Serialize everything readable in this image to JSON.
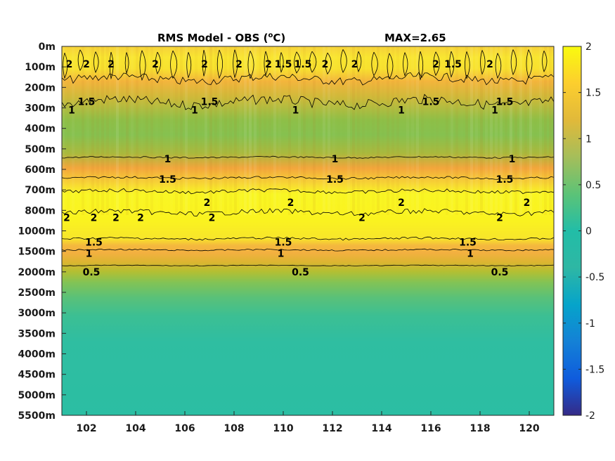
{
  "chart_data": {
    "type": "heatmap",
    "title": "RMS Model - OBS (",
    "title_unit_sup": "o",
    "title_unit_end": "C)",
    "max_label": "MAX=2.65",
    "x_ticks": [
      102,
      104,
      106,
      108,
      110,
      112,
      114,
      116,
      118,
      120
    ],
    "xlim": [
      101,
      121
    ],
    "y_ticks": [
      "0m",
      "100m",
      "200m",
      "300m",
      "400m",
      "500m",
      "600m",
      "700m",
      "800m",
      "1000m",
      "1500m",
      "2000m",
      "2500m",
      "3000m",
      "3500m",
      "4000m",
      "4500m",
      "5000m",
      "5500m"
    ],
    "y_direction": "reversed",
    "colorbar": {
      "ticks": [
        "2",
        "1.5",
        "1",
        "0.5",
        "0",
        "-0.5",
        "-1",
        "-1.5",
        "-2"
      ],
      "range": [
        -2,
        2
      ],
      "colormap": "parula"
    },
    "depth_profile_rms": [
      1.8,
      1.85,
      1.6,
      1.2,
      0.8,
      0.95,
      1.55,
      1.95,
      2.1,
      1.9,
      1.2,
      0.7,
      0.5,
      0.5,
      0.5,
      0.5,
      0.5,
      0.5,
      0.5
    ],
    "contour_levels": [
      2,
      1.5,
      1,
      0.5
    ],
    "contour_labels": [
      {
        "text": "2",
        "x": 101.3,
        "level_y": "100m"
      },
      {
        "text": "2",
        "x": 102.0,
        "level_y": "100m"
      },
      {
        "text": "2",
        "x": 103.0,
        "level_y": "100m"
      },
      {
        "text": "2",
        "x": 104.8,
        "level_y": "100m"
      },
      {
        "text": "2",
        "x": 106.8,
        "level_y": "100m"
      },
      {
        "text": "2",
        "x": 108.2,
        "level_y": "100m"
      },
      {
        "text": "2",
        "x": 109.4,
        "level_y": "100m"
      },
      {
        "text": "1.5",
        "x": 110.0,
        "level_y": "100m"
      },
      {
        "text": "1.5",
        "x": 110.8,
        "level_y": "100m"
      },
      {
        "text": "2",
        "x": 111.7,
        "level_y": "100m"
      },
      {
        "text": "2",
        "x": 112.9,
        "level_y": "100m"
      },
      {
        "text": "2",
        "x": 116.2,
        "level_y": "100m"
      },
      {
        "text": "1.5",
        "x": 116.9,
        "level_y": "100m"
      },
      {
        "text": "2",
        "x": 118.4,
        "level_y": "100m"
      },
      {
        "text": "1.5",
        "x": 102.0,
        "level_y": "200m"
      },
      {
        "text": "1.5",
        "x": 107.0,
        "level_y": "200m"
      },
      {
        "text": "1.5",
        "x": 116.0,
        "level_y": "200m"
      },
      {
        "text": "1.5",
        "x": 119.0,
        "level_y": "200m"
      },
      {
        "text": "1",
        "x": 101.4,
        "level_y": "300m"
      },
      {
        "text": "1",
        "x": 106.4,
        "level_y": "300m"
      },
      {
        "text": "1",
        "x": 110.5,
        "level_y": "300m"
      },
      {
        "text": "1",
        "x": 114.8,
        "level_y": "300m"
      },
      {
        "text": "1",
        "x": 118.6,
        "level_y": "300m"
      },
      {
        "text": "1",
        "x": 105.3,
        "level_y": "500m"
      },
      {
        "text": "1",
        "x": 112.1,
        "level_y": "500m"
      },
      {
        "text": "1",
        "x": 119.3,
        "level_y": "500m"
      },
      {
        "text": "1.5",
        "x": 105.3,
        "level_y": "600m"
      },
      {
        "text": "1.5",
        "x": 112.1,
        "level_y": "600m"
      },
      {
        "text": "1.5",
        "x": 119.0,
        "level_y": "600m"
      },
      {
        "text": "2",
        "x": 106.9,
        "level_y": "700m"
      },
      {
        "text": "2",
        "x": 110.3,
        "level_y": "700m"
      },
      {
        "text": "2",
        "x": 114.8,
        "level_y": "700m"
      },
      {
        "text": "2",
        "x": 119.9,
        "level_y": "700m"
      },
      {
        "text": "2",
        "x": 101.2,
        "level_y": "800m"
      },
      {
        "text": "2",
        "x": 102.3,
        "level_y": "800m"
      },
      {
        "text": "2",
        "x": 103.2,
        "level_y": "800m"
      },
      {
        "text": "2",
        "x": 104.2,
        "level_y": "800m"
      },
      {
        "text": "2",
        "x": 107.1,
        "level_y": "800m"
      },
      {
        "text": "2",
        "x": 113.2,
        "level_y": "800m"
      },
      {
        "text": "2",
        "x": 118.8,
        "level_y": "800m"
      },
      {
        "text": "1.5",
        "x": 102.3,
        "level_y": "1000m"
      },
      {
        "text": "1.5",
        "x": 110.0,
        "level_y": "1000m"
      },
      {
        "text": "1.5",
        "x": 117.5,
        "level_y": "1000m"
      },
      {
        "text": "1",
        "x": 102.1,
        "level_y": "1500m"
      },
      {
        "text": "1",
        "x": 109.9,
        "level_y": "1500m"
      },
      {
        "text": "1",
        "x": 117.6,
        "level_y": "1500m"
      },
      {
        "text": "0.5",
        "x": 102.2,
        "level_y": "2000m"
      },
      {
        "text": "0.5",
        "x": 110.7,
        "level_y": "2000m"
      },
      {
        "text": "0.5",
        "x": 118.8,
        "level_y": "2000m"
      }
    ]
  }
}
